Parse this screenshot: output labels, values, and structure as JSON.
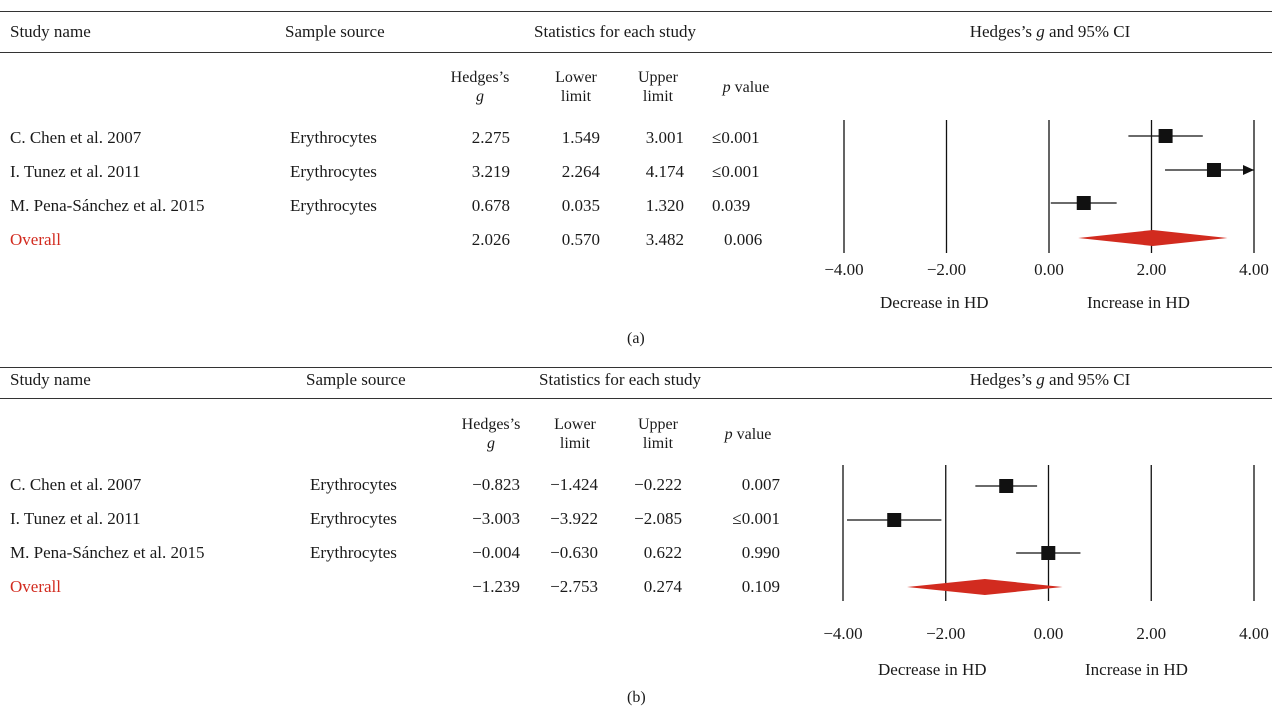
{
  "chart_data": [
    {
      "type": "forest",
      "caption": "(a)",
      "headers": {
        "study": "Study name",
        "source": "Sample source",
        "stats": "Statistics for each study",
        "plot": "Hedges’s g and 95% CI",
        "g": "Hedges’s",
        "g_sym": "g",
        "lower": [
          "Lower",
          "limit"
        ],
        "upper": [
          "Upper",
          "limit"
        ],
        "p_sym": "p",
        "p_text": " value"
      },
      "rows": [
        {
          "study": "C. Chen et al. 2007",
          "source": "Erythrocytes",
          "g": "2.275",
          "lower": "1.549",
          "upper": "3.001",
          "p": "≤0.001",
          "g_val": 2.275,
          "lo_val": 1.549,
          "hi_val": 3.001
        },
        {
          "study": "I. Tunez et al. 2011",
          "source": "Erythrocytes",
          "g": "3.219",
          "lower": "2.264",
          "upper": "4.174",
          "p": "≤0.001",
          "g_val": 3.219,
          "lo_val": 2.264,
          "hi_val": 4.174
        },
        {
          "study": "M. Pena-Sánchez et al. 2015",
          "source": "Erythrocytes",
          "g": "0.678",
          "lower": "0.035",
          "upper": "1.320",
          "p": "0.039",
          "g_val": 0.678,
          "lo_val": 0.035,
          "hi_val": 1.32
        }
      ],
      "overall": {
        "study": "Overall",
        "g": "2.026",
        "lower": "0.570",
        "upper": "3.482",
        "p": "0.006",
        "g_val": 2.026,
        "lo_val": 0.57,
        "hi_val": 3.482
      },
      "xlim": [
        -4,
        4
      ],
      "xticks": [
        "−4.00",
        "−2.00",
        "0.00",
        "2.00",
        "4.00"
      ],
      "xtick_values": [
        -4,
        -2,
        0,
        2,
        4
      ],
      "label_left": "Decrease in HD",
      "label_right": "Increase in HD",
      "overall_color": "#d22b1f"
    },
    {
      "type": "forest",
      "caption": "(b)",
      "headers": {
        "study": "Study name",
        "source": "Sample source",
        "stats": "Statistics for each study",
        "plot": "Hedges’s g and 95% CI",
        "g": "Hedges’s",
        "g_sym": "g",
        "lower": [
          "Lower",
          "limit"
        ],
        "upper": [
          "Upper",
          "limit"
        ],
        "p_sym": "p",
        "p_text": " value"
      },
      "rows": [
        {
          "study": "C. Chen et al. 2007",
          "source": "Erythrocytes",
          "g": "−0.823",
          "lower": "−1.424",
          "upper": "−0.222",
          "p": "0.007",
          "g_val": -0.823,
          "lo_val": -1.424,
          "hi_val": -0.222
        },
        {
          "study": "I. Tunez et al. 2011",
          "source": "Erythrocytes",
          "g": "−3.003",
          "lower": "−3.922",
          "upper": "−2.085",
          "p": "≤0.001",
          "g_val": -3.003,
          "lo_val": -3.922,
          "hi_val": -2.085
        },
        {
          "study": "M. Pena-Sánchez et al. 2015",
          "source": "Erythrocytes",
          "g": "−0.004",
          "lower": "−0.630",
          "upper": "0.622",
          "p": "0.990",
          "g_val": -0.004,
          "lo_val": -0.63,
          "hi_val": 0.622
        }
      ],
      "overall": {
        "study": "Overall",
        "g": "−1.239",
        "lower": "−2.753",
        "upper": "0.274",
        "p": "0.109",
        "g_val": -1.239,
        "lo_val": -2.753,
        "hi_val": 0.274
      },
      "xlim": [
        -4,
        4
      ],
      "xticks": [
        "−4.00",
        "−2.00",
        "0.00",
        "2.00",
        "4.00"
      ],
      "xtick_values": [
        -4,
        -2,
        0,
        2,
        4
      ],
      "label_left": "Decrease in HD",
      "label_right": "Increase in HD",
      "overall_color": "#d22b1f"
    }
  ]
}
